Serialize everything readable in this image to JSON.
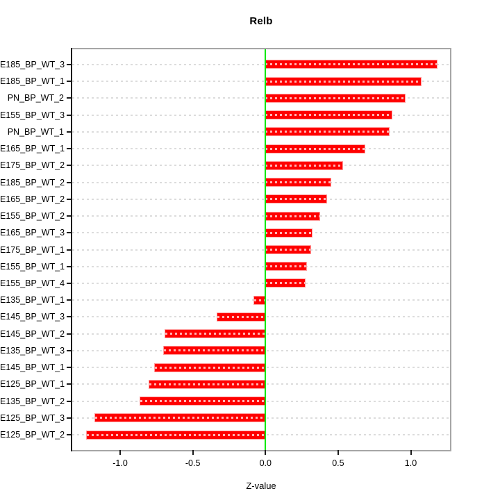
{
  "title": "Relb",
  "x_axis_label": "Z-value",
  "chart_data": {
    "type": "bar",
    "orientation": "horizontal",
    "title": "Relb",
    "xlabel": "Z-value",
    "ylabel": "",
    "categories": [
      "E185_BP_WT_3",
      "E185_BP_WT_1",
      "PN_BP_WT_2",
      "E155_BP_WT_3",
      "PN_BP_WT_1",
      "E165_BP_WT_1",
      "E175_BP_WT_2",
      "E185_BP_WT_2",
      "E165_BP_WT_2",
      "E155_BP_WT_2",
      "E165_BP_WT_3",
      "E175_BP_WT_1",
      "E155_BP_WT_1",
      "E155_BP_WT_4",
      "E135_BP_WT_1",
      "E145_BP_WT_3",
      "E145_BP_WT_2",
      "E135_BP_WT_3",
      "E145_BP_WT_1",
      "E125_BP_WT_1",
      "E135_BP_WT_2",
      "E125_BP_WT_3",
      "E125_BP_WT_2"
    ],
    "values": [
      1.18,
      1.07,
      0.96,
      0.87,
      0.85,
      0.68,
      0.53,
      0.45,
      0.42,
      0.37,
      0.32,
      0.31,
      0.28,
      0.27,
      -0.08,
      -0.33,
      -0.69,
      -0.7,
      -0.76,
      -0.8,
      -0.86,
      -1.17,
      -1.23
    ],
    "xlim": [
      -1.33,
      1.27
    ],
    "xticks": [
      -1.0,
      -0.5,
      0.0,
      0.5,
      1.0
    ],
    "xtick_labels": [
      "-1.0",
      "-0.5",
      "0.0",
      "0.5",
      "1.0"
    ],
    "grid": "horizontal dashed gridlines at every category row",
    "legend": "none",
    "reference_line": {
      "x": 0.0,
      "color": "#00e800"
    },
    "colors": {
      "bar": "#ff0000",
      "bar_dash_overlay": "#ffffff",
      "zero_line": "#00e800",
      "box_border": "#a6a6a6",
      "axis_line": "#1a1a1a",
      "gridline": "#dcdcdc",
      "background": "#ffffff",
      "text": "#000000"
    }
  }
}
